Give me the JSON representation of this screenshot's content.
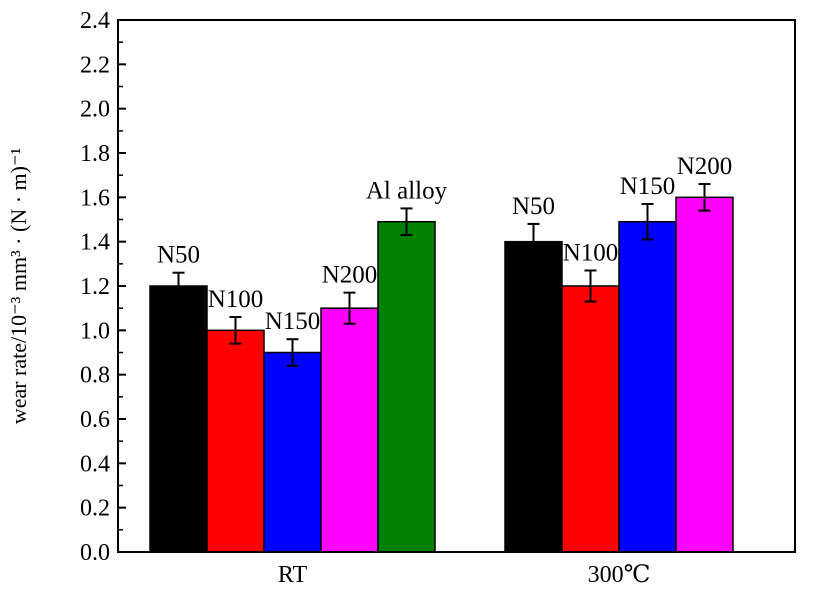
{
  "chart_data": {
    "type": "bar",
    "ylabel": "wear rate/10⁻³ mm³ · (N · m)⁻¹",
    "xlabel": "",
    "ylim": [
      0,
      2.4
    ],
    "ytick_step": 0.2,
    "y_tick_labels": [
      "0.0",
      "0.2",
      "0.4",
      "0.6",
      "0.8",
      "1.0",
      "1.2",
      "1.4",
      "1.6",
      "1.8",
      "2.0",
      "2.2",
      "2.4"
    ],
    "grid": false,
    "groups": [
      {
        "label": "RT",
        "bars": [
          {
            "name": "N50",
            "value": 1.2,
            "error": 0.06,
            "color": "#000000"
          },
          {
            "name": "N100",
            "value": 1.0,
            "error": 0.06,
            "color": "#ff0000"
          },
          {
            "name": "N150",
            "value": 0.9,
            "error": 0.06,
            "color": "#0000ff"
          },
          {
            "name": "N200",
            "value": 1.1,
            "error": 0.07,
            "color": "#ff00ff"
          },
          {
            "name": "Al alloy",
            "value": 1.49,
            "error": 0.06,
            "color": "#008000"
          }
        ]
      },
      {
        "label": "300℃",
        "bars": [
          {
            "name": "N50",
            "value": 1.4,
            "error": 0.08,
            "color": "#000000"
          },
          {
            "name": "N100",
            "value": 1.2,
            "error": 0.07,
            "color": "#ff0000"
          },
          {
            "name": "N150",
            "value": 1.49,
            "error": 0.08,
            "color": "#0000ff"
          },
          {
            "name": "N200",
            "value": 1.6,
            "error": 0.06,
            "color": "#ff00ff"
          }
        ]
      }
    ]
  }
}
